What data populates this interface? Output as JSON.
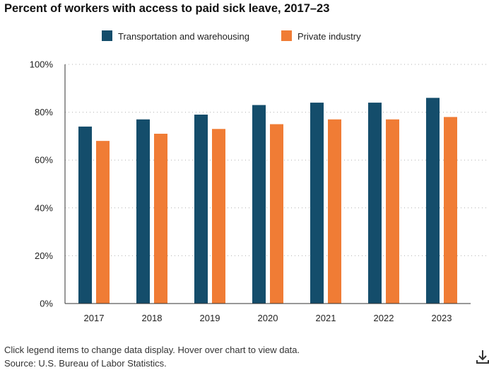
{
  "title": "Percent of workers with access to paid sick leave, 2017–23",
  "footer": {
    "instructions": "Click legend items to change data display. Hover over chart to view data.",
    "source": "Source: U.S. Bureau of Labor Statistics."
  },
  "icons": {
    "download": "download-icon"
  },
  "chart_data": {
    "type": "bar",
    "title": "Percent of workers with access to paid sick leave, 2017–23",
    "xlabel": "",
    "ylabel": "",
    "categories": [
      "2017",
      "2018",
      "2019",
      "2020",
      "2021",
      "2022",
      "2023"
    ],
    "series": [
      {
        "name": "Transportation and warehousing",
        "color": "#144d6b",
        "values": [
          74,
          77,
          79,
          83,
          84,
          84,
          86
        ]
      },
      {
        "name": "Private industry",
        "color": "#f07c35",
        "values": [
          68,
          71,
          73,
          75,
          77,
          77,
          78
        ]
      }
    ],
    "ylim": [
      0,
      100
    ],
    "yticks": [
      0,
      20,
      40,
      60,
      80,
      100
    ],
    "ytick_labels": [
      "0%",
      "20%",
      "40%",
      "60%",
      "80%",
      "100%"
    ],
    "grid": true,
    "legend_position": "top-center"
  }
}
